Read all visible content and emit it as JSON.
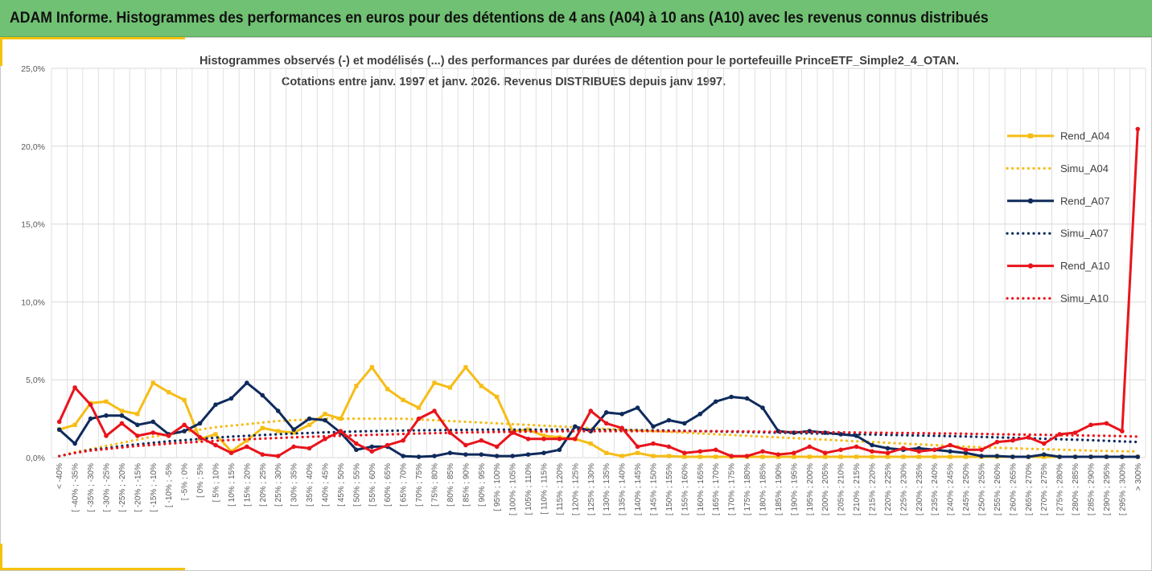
{
  "header": {
    "title": "ADAM Informe. Histogrammes des performances en euros pour des détentions de 4 ans (A04) à 10 ans (A10) avec les revenus connus distribués"
  },
  "colors": {
    "header_bg": "#70c173",
    "accent": "#f4c20d",
    "a04": "#f6bd16",
    "a07": "#0f2a5c",
    "a10": "#e8141c",
    "grid": "#d9d9d9"
  },
  "chart_data": {
    "type": "line",
    "title": "Histogrammes observés (-) et modélisés (...) des performances par durées de détention pour le portefeuille PrinceETF_Simple2_4_OTAN.",
    "subtitle": "Cotations entre janv. 1997 et janv. 2026. Revenus DISTRIBUES depuis janv 1997.",
    "ylim": [
      0,
      25
    ],
    "yticks": [
      0,
      5,
      10,
      15,
      20,
      25
    ],
    "ytick_labels": [
      "0,0%",
      "5,0%",
      "10,0%",
      "15,0%",
      "20,0%",
      "25,0%"
    ],
    "grid": true,
    "legend_position": "right",
    "categories": [
      "< -40%",
      "[ -40% ; -35%",
      "[ -35% ; -30%",
      "[ -30% ; -25%",
      "[ -25% ; -20%",
      "[ -20% ; -15%",
      "[ -15% ; -10%",
      "[ -10% ; -5%",
      "[ -5% ; 0%",
      "[ 0% ; 5%",
      "[ 5% ; 10%",
      "[ 10% ; 15%",
      "[ 15% ; 20%",
      "[ 20% ; 25%",
      "[ 25% ; 30%",
      "[ 30% ; 35%",
      "[ 35% ; 40%",
      "[ 40% ; 45%",
      "[ 45% ; 50%",
      "[ 50% ; 55%",
      "[ 55% ; 60%",
      "[ 60% ; 65%",
      "[ 65% ; 70%",
      "[ 70% ; 75%",
      "[ 75% ; 80%",
      "[ 80% ; 85%",
      "[ 85% ; 90%",
      "[ 90% ; 95%",
      "[ 95% ; 100%",
      "[ 100% ; 105%",
      "[ 105% ; 110%",
      "[ 110% ; 115%",
      "[ 115% ; 120%",
      "[ 120% ; 125%",
      "[ 125% ; 130%",
      "[ 130% ; 135%",
      "[ 135% ; 140%",
      "[ 140% ; 145%",
      "[ 145% ; 150%",
      "[ 150% ; 155%",
      "[ 155% ; 160%",
      "[ 160% ; 165%",
      "[ 165% ; 170%",
      "[ 170% ; 175%",
      "[ 175% ; 180%",
      "[ 180% ; 185%",
      "[ 185% ; 190%",
      "[ 190% ; 195%",
      "[ 195% ; 200%",
      "[ 200% ; 205%",
      "[ 205% ; 210%",
      "[ 210% ; 215%",
      "[ 215% ; 220%",
      "[ 220% ; 225%",
      "[ 225% ; 230%",
      "[ 230% ; 235%",
      "[ 235% ; 240%",
      "[ 240% ; 245%",
      "[ 245% ; 250%",
      "[ 250% ; 255%",
      "[ 255% ; 260%",
      "[ 260% ; 265%",
      "[ 265% ; 270%",
      "[ 270% ; 275%",
      "[ 275% ; 280%",
      "[ 280% ; 285%",
      "[ 285% ; 290%",
      "[ 290% ; 295%",
      "[ 295% ; 300%",
      "> 300%"
    ],
    "series": [
      {
        "name": "Rend_A04",
        "style": "solid-marker-square",
        "color": "#f6bd16",
        "values": [
          1.8,
          2.1,
          3.5,
          3.6,
          3.0,
          2.8,
          4.8,
          4.2,
          3.7,
          1.2,
          1.5,
          0.4,
          1.1,
          1.9,
          1.7,
          1.6,
          2.1,
          2.8,
          2.5,
          4.6,
          5.8,
          4.4,
          3.7,
          3.2,
          4.8,
          4.5,
          5.8,
          4.6,
          3.9,
          1.7,
          1.8,
          1.4,
          1.3,
          1.2,
          0.9,
          0.3,
          0.1,
          0.3,
          0.1,
          0.1,
          0.05,
          0.05,
          0.05,
          0.05,
          0.05,
          0.05,
          0.05,
          0.05,
          0.05,
          0.05,
          0.05,
          0.05,
          0.05,
          0.05,
          0.05,
          0.05,
          0.05,
          0.05,
          0.05,
          0.05,
          0.05,
          0.05,
          0.05,
          0.05,
          0.05,
          0.05,
          0.05,
          0.05,
          0.05,
          0.05
        ]
      },
      {
        "name": "Simu_A04",
        "style": "dotted",
        "color": "#f6bd16",
        "values": [
          0.1,
          0.35,
          0.55,
          0.75,
          0.95,
          1.15,
          1.35,
          1.5,
          1.65,
          1.8,
          1.95,
          2.05,
          2.15,
          2.25,
          2.35,
          2.4,
          2.45,
          2.5,
          2.5,
          2.5,
          2.5,
          2.5,
          2.5,
          2.45,
          2.4,
          2.35,
          2.3,
          2.25,
          2.2,
          2.15,
          2.1,
          2.05,
          2.0,
          1.95,
          1.9,
          1.85,
          1.8,
          1.75,
          1.7,
          1.65,
          1.6,
          1.55,
          1.5,
          1.45,
          1.4,
          1.35,
          1.3,
          1.25,
          1.2,
          1.15,
          1.1,
          1.05,
          1.0,
          0.95,
          0.9,
          0.85,
          0.8,
          0.75,
          0.7,
          0.67,
          0.63,
          0.6,
          0.57,
          0.54,
          0.51,
          0.48,
          0.45,
          0.43,
          0.41,
          0.4
        ]
      },
      {
        "name": "Rend_A07",
        "style": "solid-marker-circle",
        "color": "#0f2a5c",
        "values": [
          1.8,
          0.9,
          2.5,
          2.7,
          2.7,
          2.1,
          2.3,
          1.5,
          1.7,
          2.2,
          3.4,
          3.8,
          4.8,
          4.0,
          3.0,
          1.8,
          2.5,
          2.4,
          1.6,
          0.5,
          0.7,
          0.7,
          0.1,
          0.05,
          0.1,
          0.3,
          0.2,
          0.2,
          0.1,
          0.1,
          0.2,
          0.3,
          0.5,
          2.0,
          1.7,
          2.9,
          2.8,
          3.2,
          2.0,
          2.4,
          2.2,
          2.8,
          3.6,
          3.9,
          3.8,
          3.2,
          1.7,
          1.6,
          1.7,
          1.6,
          1.5,
          1.4,
          0.8,
          0.6,
          0.5,
          0.6,
          0.5,
          0.4,
          0.3,
          0.1,
          0.1,
          0.05,
          0.05,
          0.2,
          0.05,
          0.05,
          0.05,
          0.05,
          0.05,
          0.05
        ]
      },
      {
        "name": "Simu_A07",
        "style": "dotted",
        "color": "#0f2a5c",
        "values": [
          0.1,
          0.3,
          0.5,
          0.6,
          0.75,
          0.85,
          0.95,
          1.05,
          1.12,
          1.2,
          1.28,
          1.35,
          1.4,
          1.45,
          1.5,
          1.55,
          1.58,
          1.62,
          1.65,
          1.68,
          1.7,
          1.72,
          1.74,
          1.75,
          1.76,
          1.77,
          1.78,
          1.79,
          1.8,
          1.8,
          1.8,
          1.8,
          1.8,
          1.8,
          1.8,
          1.78,
          1.77,
          1.76,
          1.75,
          1.74,
          1.72,
          1.7,
          1.68,
          1.66,
          1.64,
          1.62,
          1.6,
          1.58,
          1.56,
          1.54,
          1.52,
          1.5,
          1.48,
          1.46,
          1.44,
          1.42,
          1.4,
          1.38,
          1.36,
          1.33,
          1.3,
          1.27,
          1.24,
          1.21,
          1.18,
          1.15,
          1.12,
          1.08,
          1.04,
          1.0
        ]
      },
      {
        "name": "Rend_A10",
        "style": "solid-marker-circle",
        "color": "#e8141c",
        "values": [
          2.3,
          4.5,
          3.4,
          1.4,
          2.2,
          1.4,
          1.6,
          1.4,
          2.1,
          1.3,
          0.8,
          0.3,
          0.7,
          0.2,
          0.1,
          0.7,
          0.6,
          1.2,
          1.7,
          0.9,
          0.4,
          0.8,
          1.1,
          2.5,
          3.0,
          1.6,
          0.8,
          1.1,
          0.7,
          1.6,
          1.2,
          1.2,
          1.2,
          1.2,
          3.0,
          2.2,
          1.9,
          0.7,
          0.9,
          0.7,
          0.3,
          0.4,
          0.5,
          0.1,
          0.1,
          0.4,
          0.2,
          0.3,
          0.7,
          0.3,
          0.5,
          0.7,
          0.4,
          0.3,
          0.6,
          0.4,
          0.5,
          0.8,
          0.5,
          0.5,
          1.0,
          1.1,
          1.3,
          0.9,
          1.5,
          1.6,
          2.1,
          2.2,
          1.7,
          21.1
        ]
      },
      {
        "name": "Simu_A10",
        "style": "dotted",
        "color": "#e8141c",
        "values": [
          0.1,
          0.3,
          0.45,
          0.55,
          0.65,
          0.75,
          0.82,
          0.9,
          0.96,
          1.02,
          1.08,
          1.13,
          1.18,
          1.22,
          1.26,
          1.3,
          1.34,
          1.37,
          1.4,
          1.43,
          1.46,
          1.49,
          1.52,
          1.55,
          1.57,
          1.59,
          1.61,
          1.63,
          1.65,
          1.66,
          1.67,
          1.68,
          1.69,
          1.7,
          1.7,
          1.7,
          1.7,
          1.7,
          1.7,
          1.7,
          1.7,
          1.7,
          1.7,
          1.69,
          1.68,
          1.67,
          1.66,
          1.65,
          1.64,
          1.63,
          1.62,
          1.61,
          1.6,
          1.59,
          1.58,
          1.57,
          1.56,
          1.55,
          1.53,
          1.52,
          1.5,
          1.49,
          1.47,
          1.46,
          1.44,
          1.43,
          1.41,
          1.4,
          1.38,
          1.35
        ]
      }
    ]
  }
}
